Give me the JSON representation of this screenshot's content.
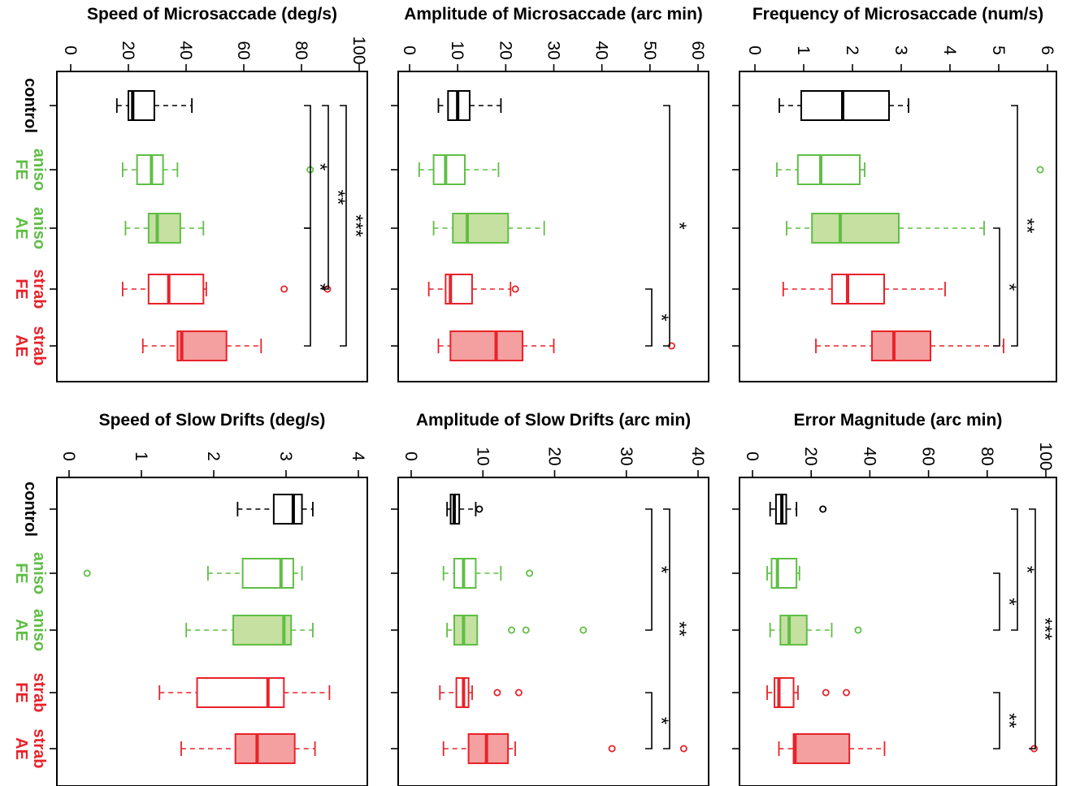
{
  "colors": {
    "control": "#000000",
    "aniso": "#5fbe45",
    "strab": "#e8222a",
    "aniso_fill": "#c5e0a1",
    "strab_fill": "#f4a0a0"
  },
  "groups": [
    {
      "key": "control",
      "lines": [
        "control"
      ],
      "color": "#000000"
    },
    {
      "key": "aniso_fe",
      "lines": [
        "aniso",
        "FE"
      ],
      "color": "#5fbe45"
    },
    {
      "key": "aniso_ae",
      "lines": [
        "aniso",
        "AE"
      ],
      "color": "#5fbe45"
    },
    {
      "key": "strab_fe",
      "lines": [
        "strab",
        "FE"
      ],
      "color": "#e8222a"
    },
    {
      "key": "strab_ae",
      "lines": [
        "strab",
        "AE"
      ],
      "color": "#e8222a"
    }
  ],
  "chart_data": [
    {
      "type": "boxplot",
      "title": "Speed of Microsaccade (deg/s)",
      "ylim": [
        0,
        100
      ],
      "ticks": [
        0,
        20,
        40,
        60,
        80,
        100
      ],
      "boxes": [
        {
          "group": "control",
          "whisker_low": 16,
          "q1": 20,
          "median": 21.5,
          "q3": 29,
          "whisker_high": 42,
          "outliers": [],
          "filled": false
        },
        {
          "group": "aniso_fe",
          "whisker_low": 18,
          "q1": 23,
          "median": 28,
          "q3": 32,
          "whisker_high": 37,
          "outliers": [
            83
          ],
          "filled": false
        },
        {
          "group": "aniso_ae",
          "whisker_low": 19,
          "q1": 27,
          "median": 30,
          "q3": 38,
          "whisker_high": 46,
          "outliers": [],
          "filled": true
        },
        {
          "group": "strab_fe",
          "whisker_low": 18,
          "q1": 27,
          "median": 34,
          "q3": 46,
          "whisker_high": 47,
          "outliers": [
            74,
            89
          ],
          "filled": false
        },
        {
          "group": "strab_ae",
          "whisker_low": 25,
          "q1": 37,
          "median": 38.5,
          "q3": 54,
          "whisker_high": 66,
          "outliers": [],
          "filled": true
        }
      ],
      "significance": [
        {
          "from": 0,
          "to": 2,
          "label": "*",
          "level": 0
        },
        {
          "from": 2,
          "to": 4,
          "label": "*",
          "level": 0
        },
        {
          "from": 0,
          "to": 3,
          "label": "**",
          "level": 1
        },
        {
          "from": 0,
          "to": 4,
          "label": "***",
          "level": 2
        }
      ]
    },
    {
      "type": "boxplot",
      "title": "Amplitude of Microsaccade (arc min)",
      "ylim": [
        0,
        60
      ],
      "ticks": [
        0,
        10,
        20,
        30,
        40,
        50,
        60
      ],
      "boxes": [
        {
          "group": "control",
          "whisker_low": 6,
          "q1": 8,
          "median": 10,
          "q3": 12.5,
          "whisker_high": 19,
          "outliers": [],
          "filled": false
        },
        {
          "group": "aniso_fe",
          "whisker_low": 2,
          "q1": 5,
          "median": 7.5,
          "q3": 11.5,
          "whisker_high": 18.5,
          "outliers": [],
          "filled": false
        },
        {
          "group": "aniso_ae",
          "whisker_low": 5,
          "q1": 9,
          "median": 12,
          "q3": 20.5,
          "whisker_high": 28,
          "outliers": [],
          "filled": true
        },
        {
          "group": "strab_fe",
          "whisker_low": 4,
          "q1": 7.5,
          "median": 8.5,
          "q3": 13,
          "whisker_high": 21,
          "outliers": [
            22
          ],
          "filled": false
        },
        {
          "group": "strab_ae",
          "whisker_low": 6,
          "q1": 8.5,
          "median": 18,
          "q3": 23.5,
          "whisker_high": 30,
          "outliers": [
            54.5
          ],
          "filled": true
        }
      ],
      "significance": [
        {
          "from": 3,
          "to": 4,
          "label": "*",
          "level": 0
        },
        {
          "from": 0,
          "to": 4,
          "label": "*",
          "level": 1
        }
      ]
    },
    {
      "type": "boxplot",
      "title": "Frequency of Microsaccade (num/s)",
      "ylim": [
        0,
        6
      ],
      "ticks": [
        0,
        1,
        2,
        3,
        4,
        5,
        6
      ],
      "boxes": [
        {
          "group": "control",
          "whisker_low": 0.5,
          "q1": 0.95,
          "median": 1.8,
          "q3": 2.75,
          "whisker_high": 3.15,
          "outliers": [],
          "filled": false
        },
        {
          "group": "aniso_fe",
          "whisker_low": 0.45,
          "q1": 0.88,
          "median": 1.35,
          "q3": 2.15,
          "whisker_high": 2.25,
          "outliers": [
            5.85
          ],
          "filled": false
        },
        {
          "group": "aniso_ae",
          "whisker_low": 0.65,
          "q1": 1.17,
          "median": 1.75,
          "q3": 2.95,
          "whisker_high": 4.7,
          "outliers": [],
          "filled": true
        },
        {
          "group": "strab_fe",
          "whisker_low": 0.58,
          "q1": 1.58,
          "median": 1.9,
          "q3": 2.65,
          "whisker_high": 3.9,
          "outliers": [],
          "filled": false
        },
        {
          "group": "strab_ae",
          "whisker_low": 1.25,
          "q1": 2.4,
          "median": 2.85,
          "q3": 3.6,
          "whisker_high": 5.1,
          "outliers": [],
          "filled": true
        }
      ],
      "significance": [
        {
          "from": 2,
          "to": 4,
          "label": "*",
          "level": 0
        },
        {
          "from": 0,
          "to": 4,
          "label": "**",
          "level": 1
        }
      ]
    },
    {
      "type": "boxplot",
      "title": "Speed of Slow Drifts (deg/s)",
      "ylim": [
        0,
        4
      ],
      "ticks": [
        0,
        1,
        2,
        3,
        4
      ],
      "boxes": [
        {
          "group": "control",
          "whisker_low": 2.33,
          "q1": 2.83,
          "median": 3.1,
          "q3": 3.22,
          "whisker_high": 3.37,
          "outliers": [],
          "filled": false
        },
        {
          "group": "aniso_fe",
          "whisker_low": 1.92,
          "q1": 2.4,
          "median": 2.93,
          "q3": 3.1,
          "whisker_high": 3.22,
          "outliers": [
            0.25
          ],
          "filled": false
        },
        {
          "group": "aniso_ae",
          "whisker_low": 1.62,
          "q1": 2.27,
          "median": 2.97,
          "q3": 3.07,
          "whisker_high": 3.37,
          "outliers": [],
          "filled": true
        },
        {
          "group": "strab_fe",
          "whisker_low": 1.25,
          "q1": 1.77,
          "median": 2.75,
          "q3": 2.97,
          "whisker_high": 3.6,
          "outliers": [],
          "filled": false
        },
        {
          "group": "strab_ae",
          "whisker_low": 1.55,
          "q1": 2.3,
          "median": 2.6,
          "q3": 3.12,
          "whisker_high": 3.4,
          "outliers": [],
          "filled": true
        }
      ],
      "significance": []
    },
    {
      "type": "boxplot",
      "title": "Amplitude of Slow Drifts (arc min)",
      "ylim": [
        0,
        40
      ],
      "ticks": [
        0,
        10,
        20,
        30,
        40
      ],
      "boxes": [
        {
          "group": "control",
          "whisker_low": 5,
          "q1": 5.5,
          "median": 6,
          "q3": 6.7,
          "whisker_high": 9,
          "outliers": [
            9.5
          ],
          "filled": false
        },
        {
          "group": "aniso_fe",
          "whisker_low": 4.5,
          "q1": 6,
          "median": 7.3,
          "q3": 9,
          "whisker_high": 12.5,
          "outliers": [
            16.5
          ],
          "filled": false
        },
        {
          "group": "aniso_ae",
          "whisker_low": 5,
          "q1": 6,
          "median": 7.3,
          "q3": 9.2,
          "whisker_high": 9.2,
          "outliers": [
            14,
            16,
            24
          ],
          "filled": true
        },
        {
          "group": "strab_fe",
          "whisker_low": 4,
          "q1": 6.3,
          "median": 7.3,
          "q3": 8,
          "whisker_high": 8.5,
          "outliers": [
            12,
            15
          ],
          "filled": false
        },
        {
          "group": "strab_ae",
          "whisker_low": 4.5,
          "q1": 8,
          "median": 10.5,
          "q3": 13.5,
          "whisker_high": 14.5,
          "outliers": [
            28,
            38
          ],
          "filled": true
        }
      ],
      "significance": [
        {
          "from": 0,
          "to": 2,
          "label": "*",
          "level": 0
        },
        {
          "from": 3,
          "to": 4,
          "label": "*",
          "level": 0
        },
        {
          "from": 0,
          "to": 4,
          "label": "**",
          "level": 1
        }
      ]
    },
    {
      "type": "boxplot",
      "title": "Error Magnitude (arc min)",
      "ylim": [
        0,
        100
      ],
      "ticks": [
        0,
        20,
        40,
        60,
        80,
        100
      ],
      "boxes": [
        {
          "group": "control",
          "whisker_low": 6,
          "q1": 8,
          "median": 10,
          "q3": 11.5,
          "whisker_high": 15,
          "outliers": [
            24
          ],
          "filled": false
        },
        {
          "group": "aniso_fe",
          "whisker_low": 5,
          "q1": 6.5,
          "median": 8.5,
          "q3": 15,
          "whisker_high": 16,
          "outliers": [],
          "filled": false
        },
        {
          "group": "aniso_ae",
          "whisker_low": 6,
          "q1": 9.5,
          "median": 12.5,
          "q3": 18.5,
          "whisker_high": 27,
          "outliers": [
            36
          ],
          "filled": true
        },
        {
          "group": "strab_fe",
          "whisker_low": 5,
          "q1": 7.5,
          "median": 9,
          "q3": 14,
          "whisker_high": 15.5,
          "outliers": [
            25,
            32
          ],
          "filled": false
        },
        {
          "group": "strab_ae",
          "whisker_low": 9,
          "q1": 14,
          "median": 14.5,
          "q3": 33,
          "whisker_high": 45,
          "outliers": [
            96
          ],
          "filled": true
        }
      ],
      "significance": [
        {
          "from": 1,
          "to": 2,
          "label": "*",
          "level": 0
        },
        {
          "from": 3,
          "to": 4,
          "label": "**",
          "level": 0
        },
        {
          "from": 0,
          "to": 2,
          "label": "*",
          "level": 1
        },
        {
          "from": 0,
          "to": 4,
          "label": "***",
          "level": 2
        }
      ]
    }
  ]
}
